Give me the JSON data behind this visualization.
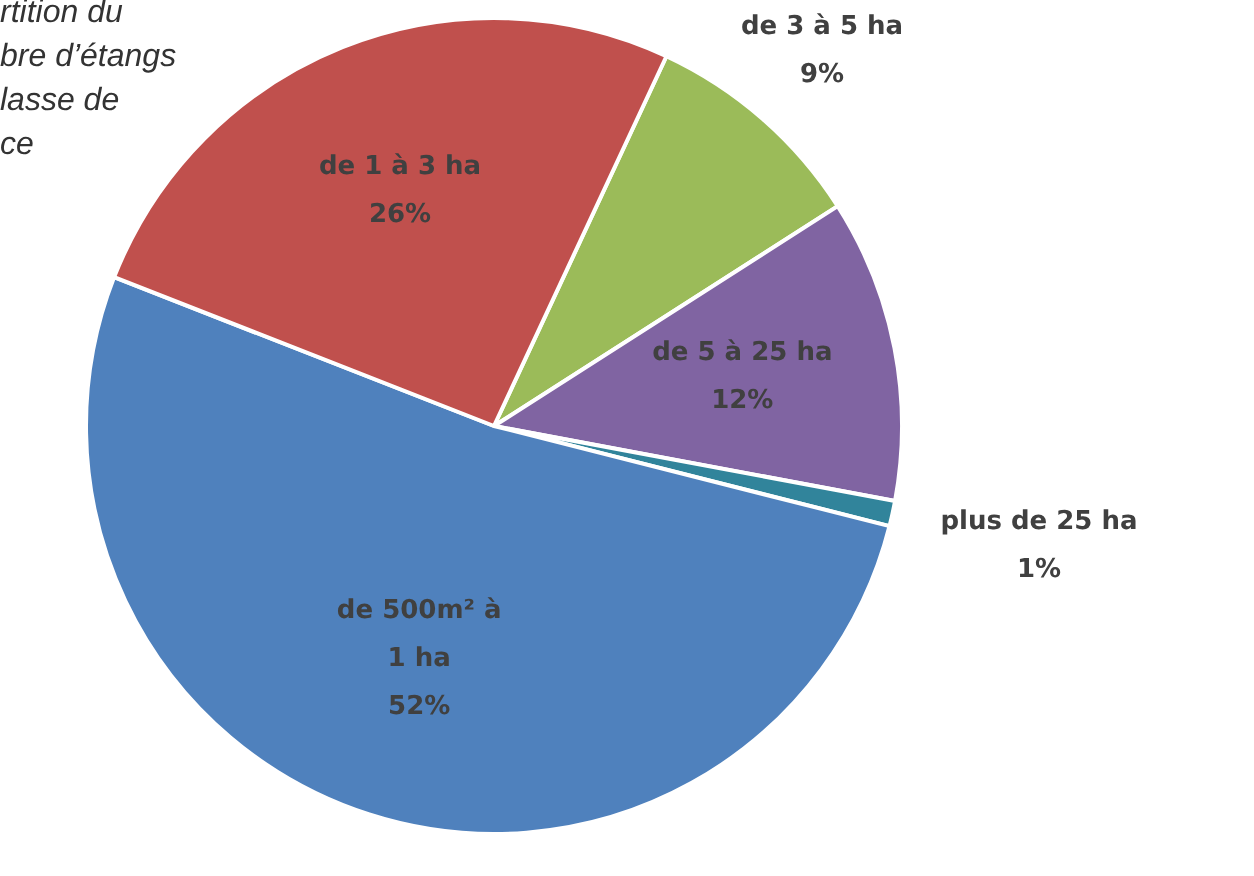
{
  "chart_data": {
    "type": "pie",
    "title": "rtition du\nbre d’étangs\nlasse de\nce",
    "categories": [
      "de 3 à 5 ha",
      "de 5 à 25 ha",
      "plus de 25 ha",
      "de 500m² à 1 ha",
      "de 1 à 3 ha"
    ],
    "values": [
      9,
      12,
      1,
      52,
      26
    ],
    "value_labels": [
      "9%",
      "12%",
      "1%",
      "52%",
      "26%"
    ],
    "colors": [
      "#9bbb59",
      "#8064a2",
      "#31849b",
      "#4f81bd",
      "#c0504d"
    ],
    "legend": false
  }
}
